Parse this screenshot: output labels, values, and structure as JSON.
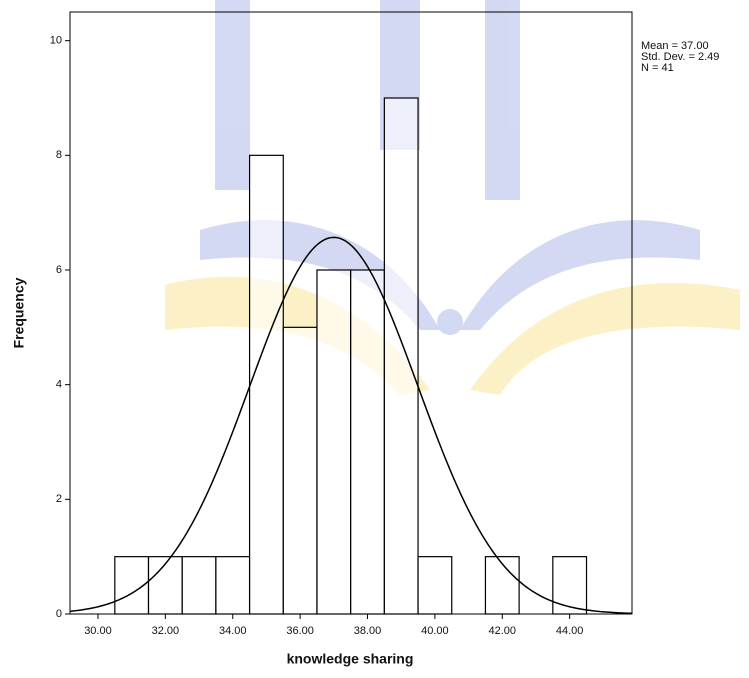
{
  "chart_data": {
    "type": "histogram",
    "x_label": "knowledge sharing",
    "y_label": "Frequency",
    "bins": [
      30.5,
      31.5,
      32.5,
      33.5,
      34.5,
      35.5,
      36.5,
      37.5,
      38.5,
      39.5,
      40.5,
      41.5,
      42.5,
      43.5,
      44.5
    ],
    "counts": [
      1,
      1,
      1,
      1,
      8,
      5,
      6,
      6,
      9,
      1,
      0,
      1,
      0,
      1
    ],
    "color": "#ffffff",
    "edge_color": "#000000",
    "xlim": [
      29.17,
      45.85
    ],
    "ylim": [
      0,
      10.5
    ],
    "xticks": [
      {
        "value": 30,
        "label": "30.00"
      },
      {
        "value": 32,
        "label": "32.00"
      },
      {
        "value": 34,
        "label": "34.00"
      },
      {
        "value": 36,
        "label": "36.00"
      },
      {
        "value": 38,
        "label": "38.00"
      },
      {
        "value": 40,
        "label": "40.00"
      },
      {
        "value": 42,
        "label": "42.00"
      },
      {
        "value": 44,
        "label": "44.00"
      }
    ],
    "yticks": [
      0,
      2,
      4,
      6,
      8,
      10
    ],
    "grid": false,
    "normal_curve": {
      "mean": 37,
      "std": 2.49,
      "n": 41
    },
    "annotations": [
      "Mean = 37.00",
      "Std. Dev. = 2.49",
      "N = 41"
    ]
  }
}
